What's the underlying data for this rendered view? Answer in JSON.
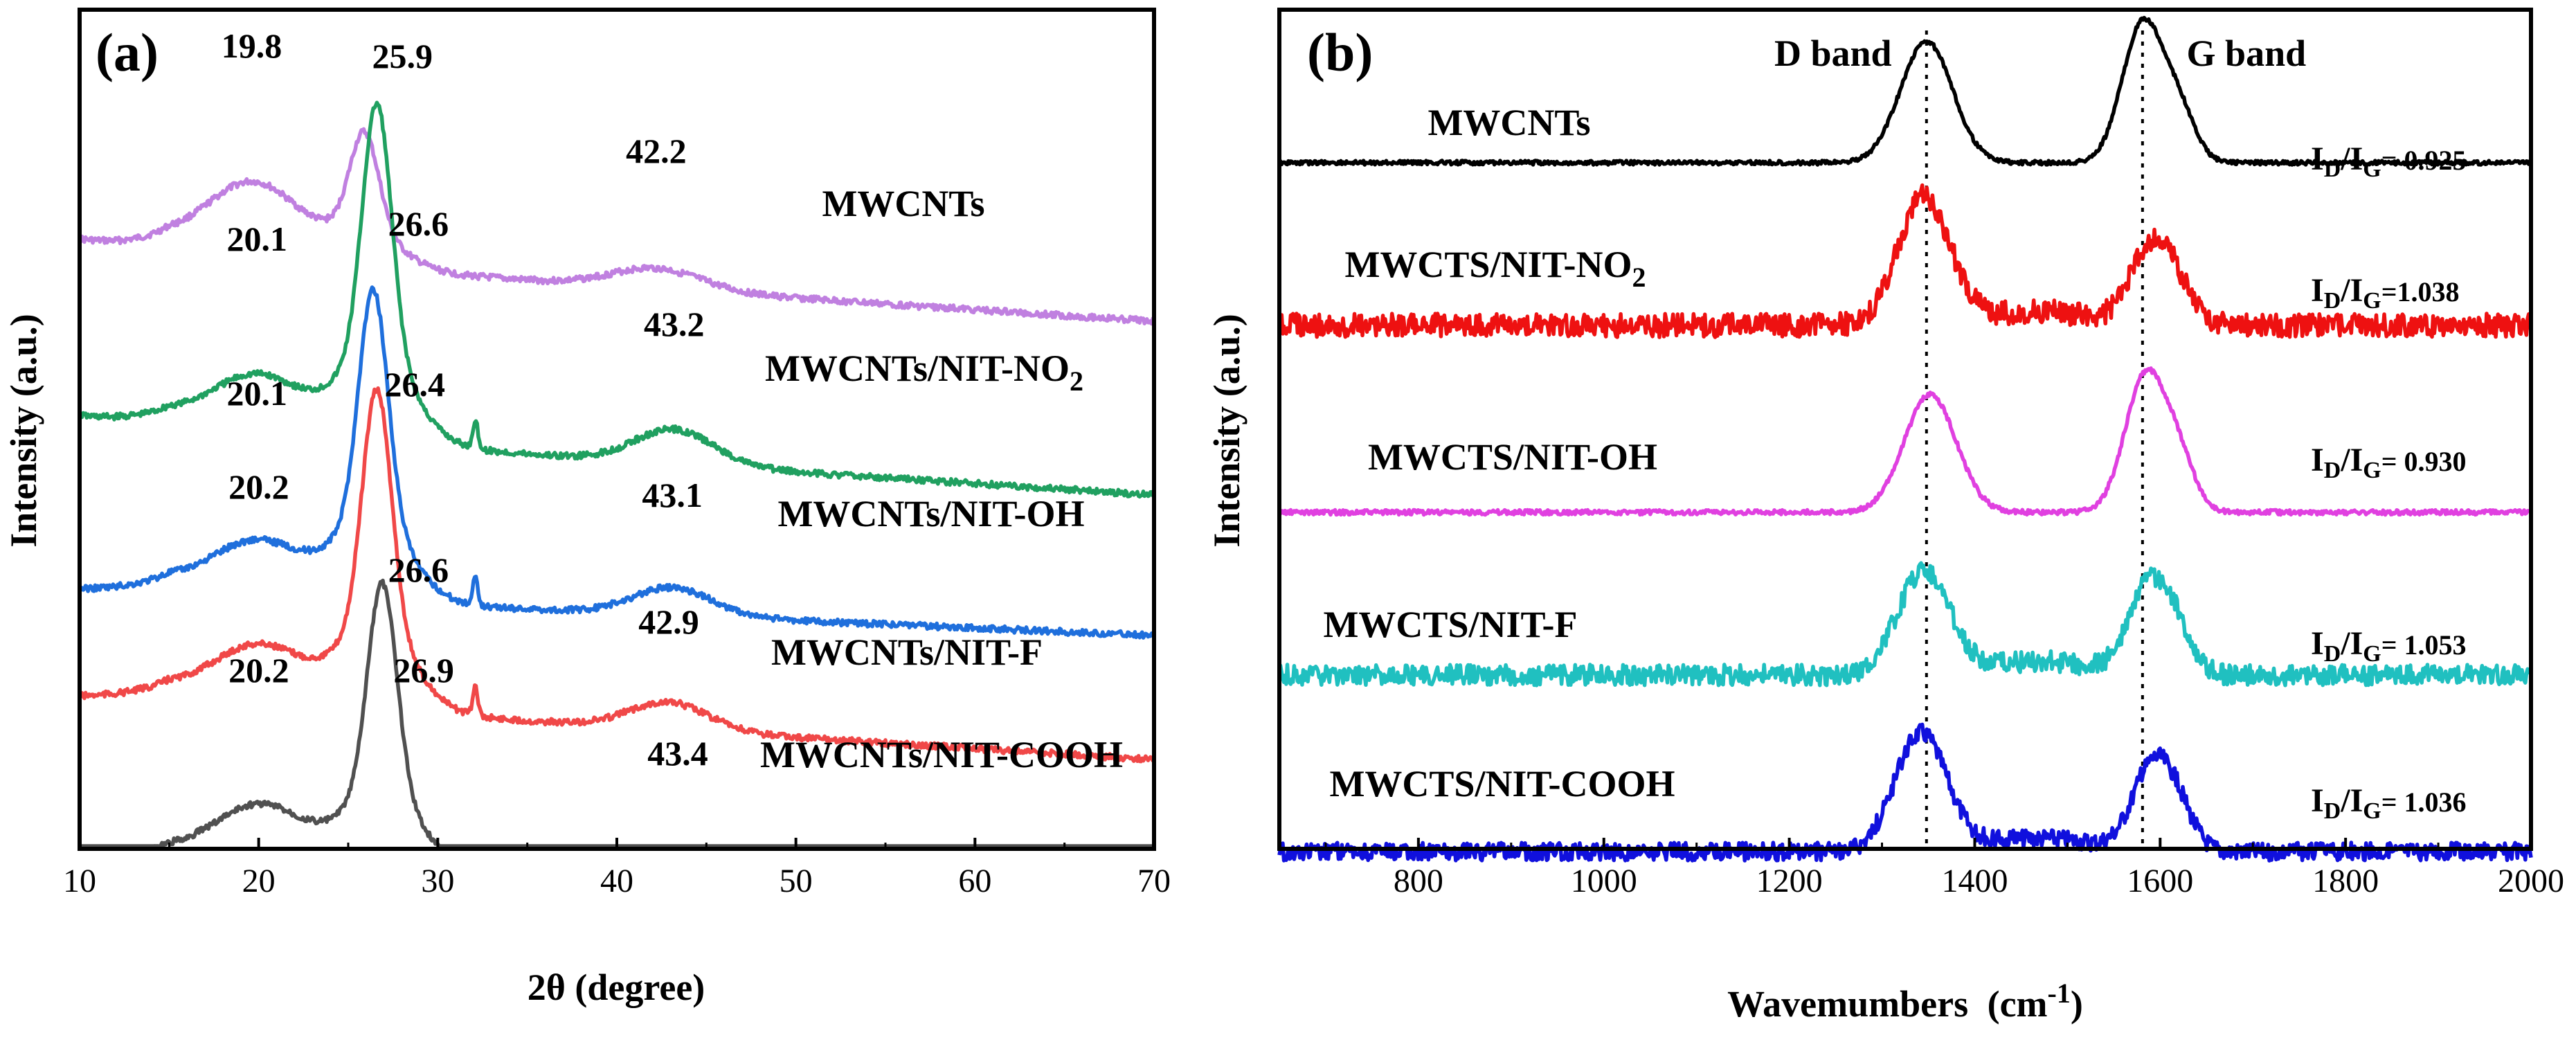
{
  "chart_data": [
    {
      "type": "line",
      "panel_label": "(a)",
      "xlabel": "2θ (degree)",
      "ylabel": "Intensity (a.u.)",
      "xlim": [
        10,
        70
      ],
      "xticks": [
        10,
        20,
        30,
        40,
        50,
        60,
        70
      ],
      "y_ticks_shown": false,
      "grid": false,
      "series": [
        {
          "name": "MWCNTs",
          "color": "#c080e0",
          "peaks": [
            {
              "x": 19.8,
              "label": "19.8"
            },
            {
              "x": 25.9,
              "label": "25.9"
            },
            {
              "x": 42.2,
              "label": "42.2"
            }
          ]
        },
        {
          "name": "MWCNTs/NIT-NO",
          "name_subscript": "2",
          "color": "#20a060",
          "peaks": [
            {
              "x": 20.1,
              "label": "20.1"
            },
            {
              "x": 26.6,
              "label": "26.6"
            },
            {
              "x": 43.2,
              "label": "43.2"
            }
          ]
        },
        {
          "name": "MWCNTs/NIT-OH",
          "color": "#1f6fdc",
          "peaks": [
            {
              "x": 20.1,
              "label": "20.1"
            },
            {
              "x": 26.4,
              "label": "26.4"
            },
            {
              "x": 43.1,
              "label": "43.1"
            }
          ]
        },
        {
          "name": "MWCNTs/NIT-F",
          "color": "#f04848",
          "peaks": [
            {
              "x": 20.2,
              "label": "20.2"
            },
            {
              "x": 26.6,
              "label": "26.6"
            },
            {
              "x": 42.9,
              "label": "42.9"
            }
          ]
        },
        {
          "name": "MWCNTs/NIT-COOH",
          "color": "#505050",
          "peaks": [
            {
              "x": 20.2,
              "label": "20.2"
            },
            {
              "x": 26.9,
              "label": "26.9"
            },
            {
              "x": 43.4,
              "label": "43.4"
            }
          ]
        }
      ]
    },
    {
      "type": "line",
      "panel_label": "(b)",
      "xlabel": "Wavemumbers",
      "xlabel_unit": "(cm",
      "xlabel_unit_sup": "-1",
      "xlabel_unit_end": ")",
      "ylabel": "Intensity (a.u.)",
      "xlim": [
        650,
        2000
      ],
      "xticks": [
        800,
        1000,
        1200,
        1400,
        1600,
        1800,
        2000
      ],
      "y_ticks_shown": false,
      "grid": false,
      "band_lines": [
        {
          "x": 1348,
          "label": "D band"
        },
        {
          "x": 1581,
          "label": "G band"
        }
      ],
      "series": [
        {
          "name": "MWCNTs",
          "color": "#000000",
          "d_peak": 1348,
          "g_peak": 1581,
          "ratio_label": "= 0.925",
          "ratio": 0.925
        },
        {
          "name": "MWCTS/NIT-NO",
          "name_subscript": "2",
          "color": "#ee1111",
          "d_peak": 1345,
          "g_peak": 1590,
          "ratio_label": "=1.038",
          "ratio": 1.038
        },
        {
          "name": "MWCTS/NIT-OH",
          "color": "#e040e0",
          "d_peak": 1352,
          "g_peak": 1584,
          "ratio_label": "= 0.930",
          "ratio": 0.93
        },
        {
          "name": "MWCTS/NIT-F",
          "color": "#20c0c0",
          "d_peak": 1345,
          "g_peak": 1588,
          "ratio_label": "= 1.053",
          "ratio": 1.053
        },
        {
          "name": "MWCTS/NIT-COOH",
          "color": "#1010dd",
          "d_peak": 1342,
          "g_peak": 1592,
          "ratio_label": "= 1.036",
          "ratio": 1.036
        }
      ],
      "ratio_symbol": {
        "main": "I",
        "sub_d": "D",
        "sep": "/",
        "sub_g": "G"
      }
    }
  ]
}
